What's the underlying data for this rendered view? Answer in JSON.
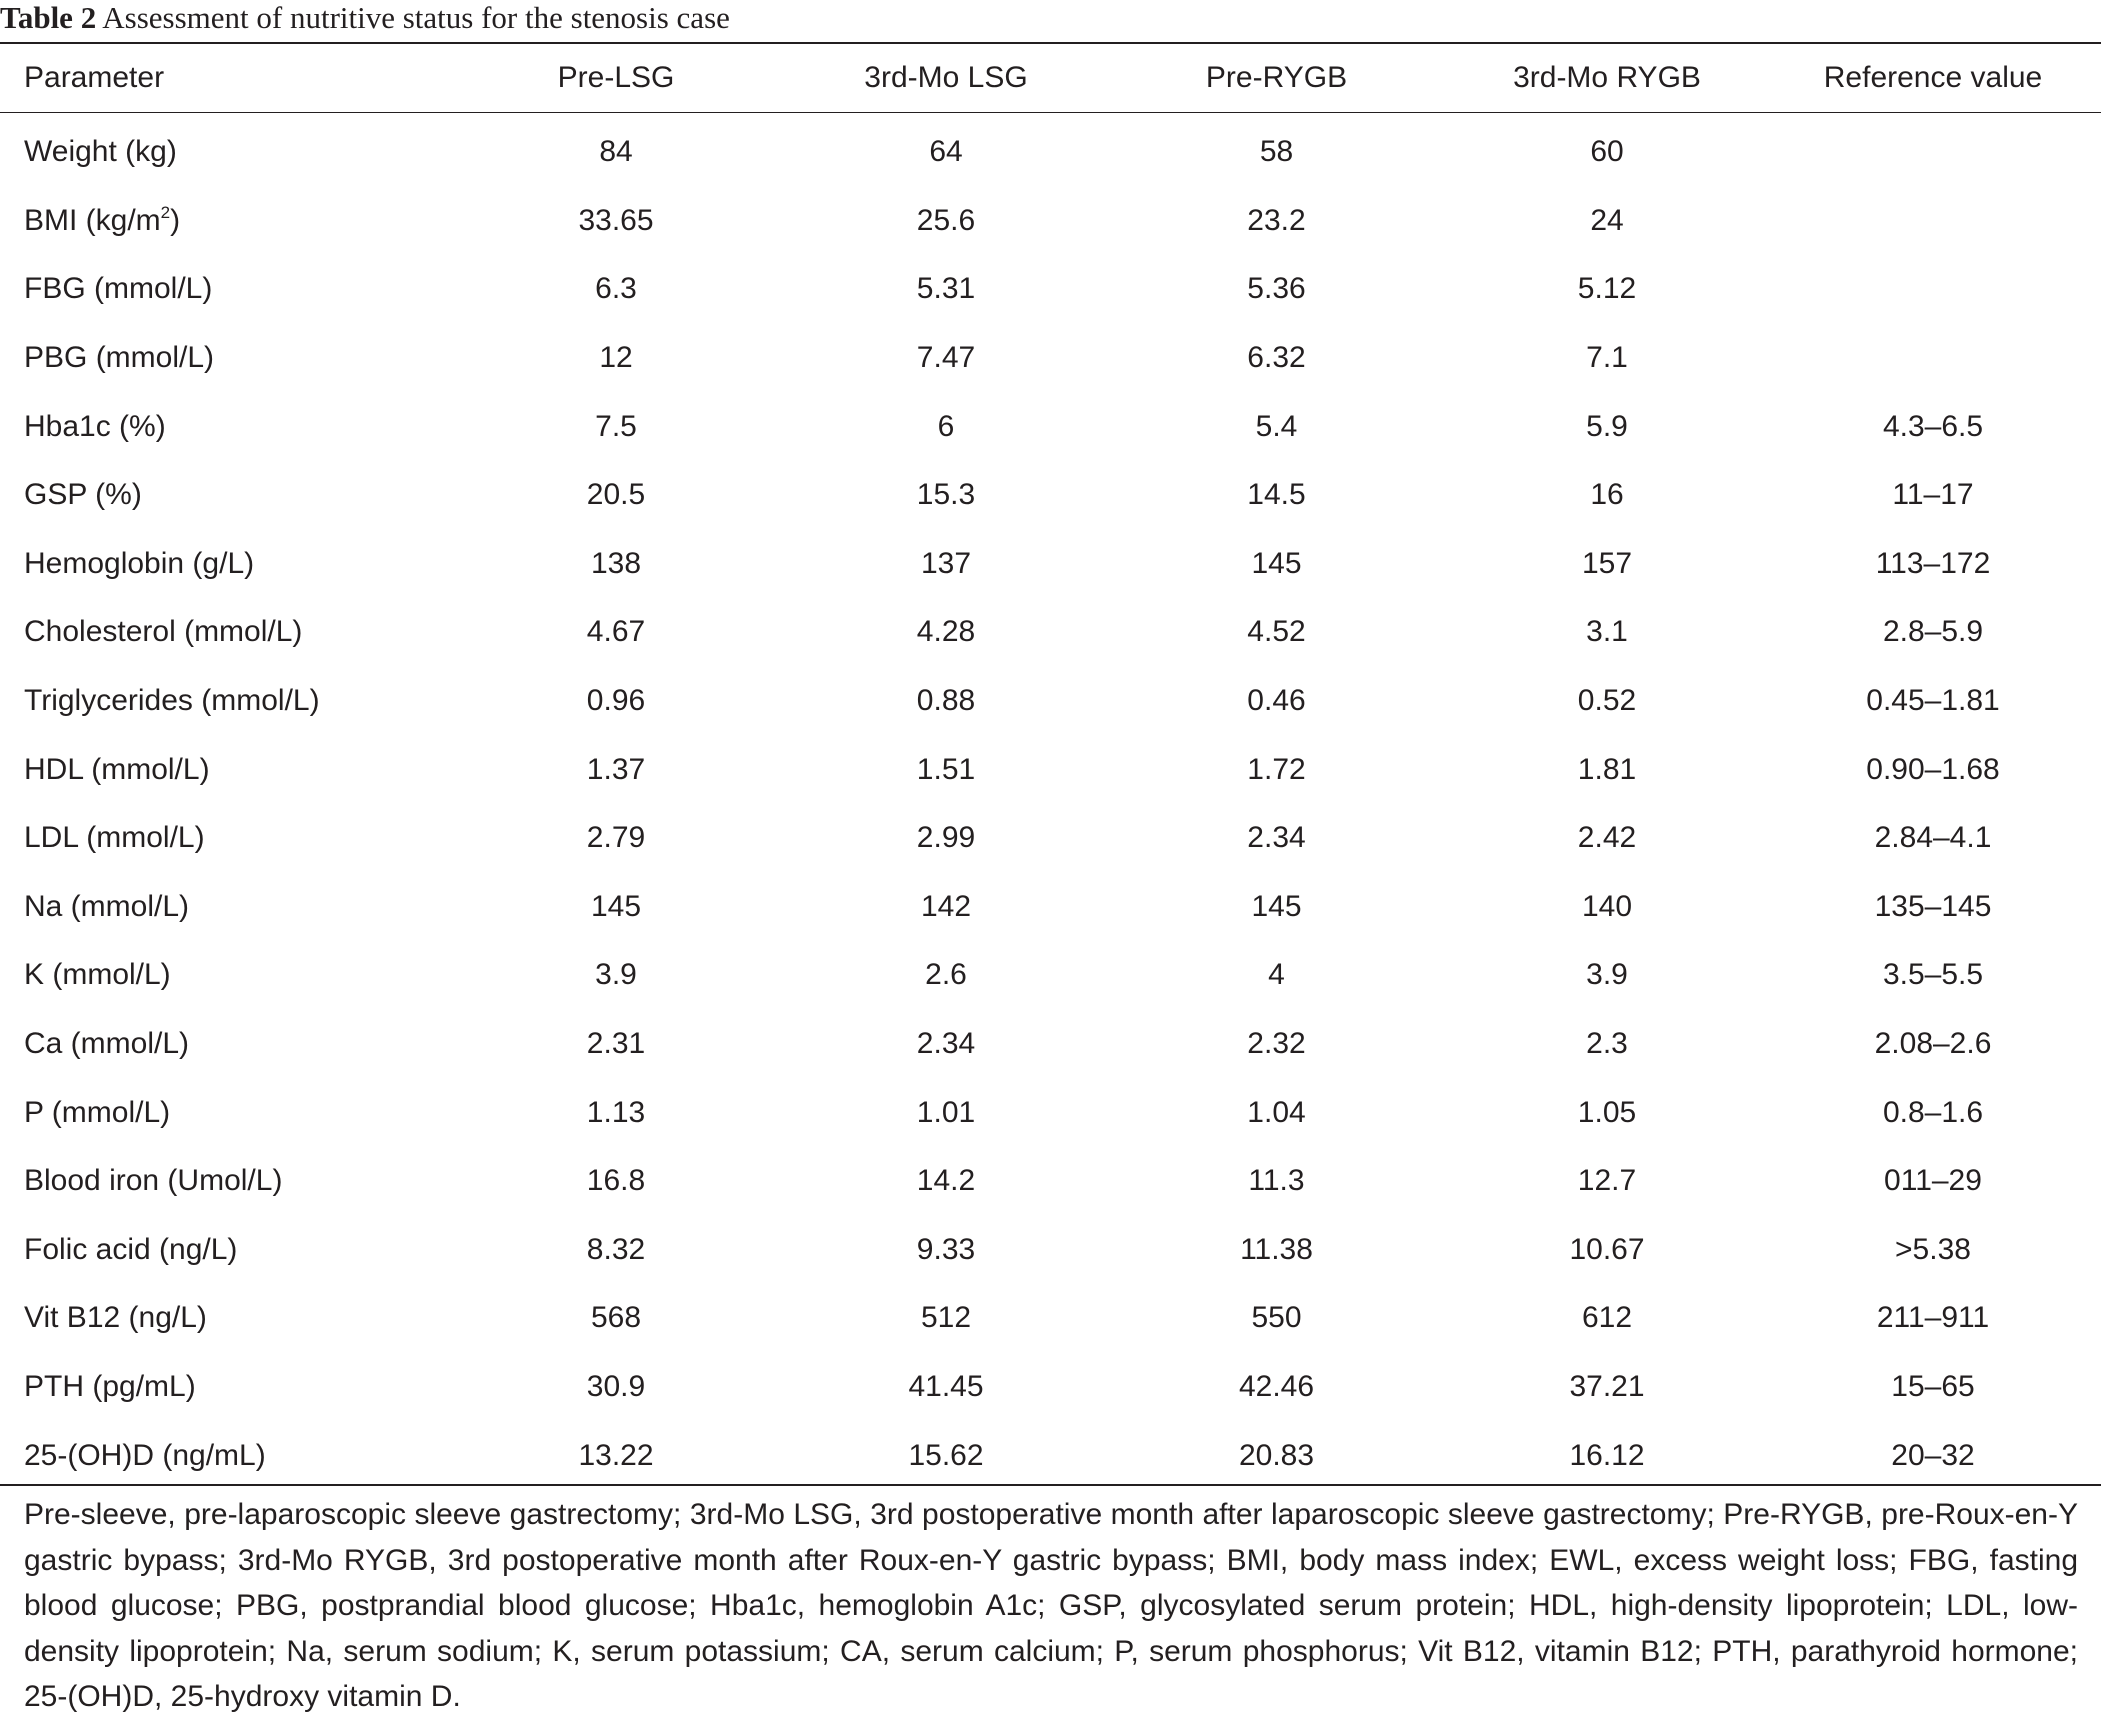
{
  "caption": {
    "label": "Table 2",
    "title": "Assessment of nutritive status for the stenosis case"
  },
  "table": {
    "headers": [
      "Parameter",
      "Pre-LSG",
      "3rd-Mo LSG",
      "Pre-RYGB",
      "3rd-Mo RYGB",
      "Reference value"
    ],
    "bmi_unit_base": "BMI (kg/m",
    "bmi_unit_sup": "2",
    "bmi_unit_close": ")",
    "rows": [
      [
        "Weight (kg)",
        "84",
        "64",
        "58",
        "60",
        ""
      ],
      [
        "BMI (kg/m2)",
        "33.65",
        "25.6",
        "23.2",
        "24",
        ""
      ],
      [
        "FBG (mmol/L)",
        "6.3",
        "5.31",
        "5.36",
        "5.12",
        ""
      ],
      [
        "PBG (mmol/L)",
        "12",
        "7.47",
        "6.32",
        "7.1",
        ""
      ],
      [
        "Hba1c (%)",
        "7.5",
        "6",
        "5.4",
        "5.9",
        "4.3–6.5"
      ],
      [
        "GSP (%)",
        "20.5",
        "15.3",
        "14.5",
        "16",
        "11–17"
      ],
      [
        "Hemoglobin (g/L)",
        "138",
        "137",
        "145",
        "157",
        "113–172"
      ],
      [
        "Cholesterol (mmol/L)",
        "4.67",
        "4.28",
        "4.52",
        "3.1",
        "2.8–5.9"
      ],
      [
        "Triglycerides (mmol/L)",
        "0.96",
        "0.88",
        "0.46",
        "0.52",
        "0.45–1.81"
      ],
      [
        "HDL (mmol/L)",
        "1.37",
        "1.51",
        "1.72",
        "1.81",
        "0.90–1.68"
      ],
      [
        "LDL (mmol/L)",
        "2.79",
        "2.99",
        "2.34",
        "2.42",
        "2.84–4.1"
      ],
      [
        "Na (mmol/L)",
        "145",
        "142",
        "145",
        "140",
        "135–145"
      ],
      [
        "K (mmol/L)",
        "3.9",
        "2.6",
        "4",
        "3.9",
        "3.5–5.5"
      ],
      [
        "Ca (mmol/L)",
        "2.31",
        "2.34",
        "2.32",
        "2.3",
        "2.08–2.6"
      ],
      [
        "P (mmol/L)",
        "1.13",
        "1.01",
        "1.04",
        "1.05",
        "0.8–1.6"
      ],
      [
        "Blood iron (Umol/L)",
        "16.8",
        "14.2",
        "11.3",
        "12.7",
        "011–29"
      ],
      [
        "Folic acid (ng/L)",
        "8.32",
        "9.33",
        "11.38",
        "10.67",
        ">5.38"
      ],
      [
        "Vit B12 (ng/L)",
        "568",
        "512",
        "550",
        "612",
        "211–911"
      ],
      [
        "PTH (pg/mL)",
        "30.9",
        "41.45",
        "42.46",
        "37.21",
        "15–65"
      ],
      [
        "25-(OH)D (ng/mL)",
        "13.22",
        "15.62",
        "20.83",
        "16.12",
        "20–32"
      ]
    ]
  },
  "footnote": "Pre-sleeve, pre-laparoscopic sleeve gastrectomy; 3rd-Mo LSG, 3rd postoperative month after laparoscopic sleeve gastrectomy; Pre-RYGB, pre-Roux-en-Y gastric bypass; 3rd-Mo RYGB, 3rd postoperative month after Roux-en-Y gastric bypass; BMI, body mass index; EWL, excess weight loss; FBG, fasting blood glucose; PBG, postprandial blood glucose; Hba1c, hemoglobin A1c; GSP, glycosylated serum protein; HDL, high-density lipoprotein; LDL, low-density lipoprotein; Na, serum sodium; K, serum potassium; CA, serum calcium; P, serum phosphorus; Vit B12, vitamin B12; PTH, parathyroid hormone; 25-(OH)D, 25-hydroxy vitamin D."
}
